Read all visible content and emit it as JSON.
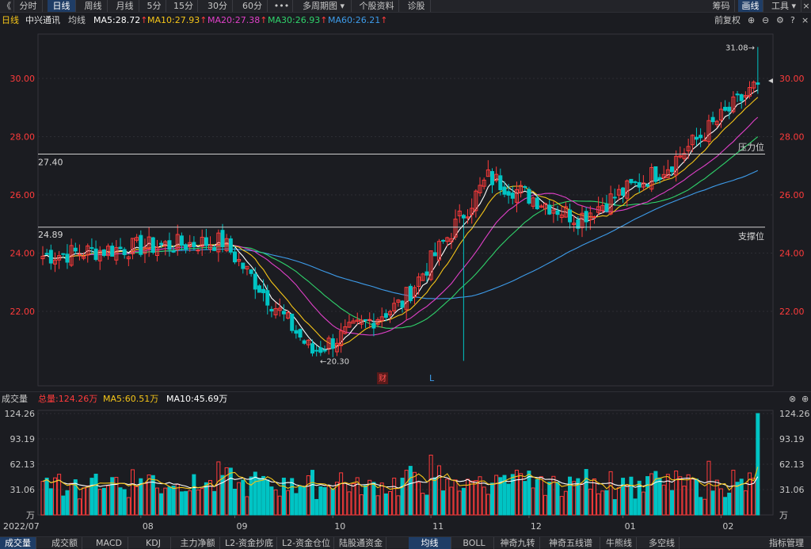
{
  "toolbar": {
    "back_glyph": "《",
    "tabs": [
      "分时",
      "日线",
      "周线",
      "月线",
      "5分",
      "15分",
      "30分",
      "60分",
      "•••",
      "多周期图 ▾",
      "个股资料",
      "诊股"
    ],
    "active_tab": "日线",
    "right": [
      "筹码",
      "画线",
      "工具 ▾"
    ],
    "active_right": "画线"
  },
  "info": {
    "period": "日线",
    "stock_name": "中兴通讯",
    "ma_label": "均线",
    "ma5": "MA5:28.72",
    "ma10": "MA10:27.93",
    "ma20": "MA20:27.38",
    "ma30": "MA30:26.93",
    "ma60": "MA60:26.21",
    "adjust": "前复权",
    "colors": {
      "ma5": "#ffffff",
      "ma10": "#f5c518",
      "ma20": "#e040c8",
      "ma30": "#2fd36b",
      "ma60": "#3d9be9",
      "up": "#ff3b3b",
      "down": "#00c4c4"
    }
  },
  "main": {
    "y_ticks": [
      "30.00",
      "28.00",
      "26.00",
      "24.00",
      "22.00"
    ],
    "resistance_value": "27.40",
    "resistance_label": "压力位",
    "support_value": "24.89",
    "support_label": "支撑位",
    "high_label": "31.08→",
    "low_label": "←20.30",
    "marker_cai": "财",
    "marker_l": "L"
  },
  "volume": {
    "title": "成交量",
    "total": "总量:124.26万",
    "ma5": "MA5:60.51万",
    "ma10": "MA10:45.69万",
    "y_ticks": [
      "124.26",
      "93.19",
      "62.13",
      "31.06",
      "万"
    ],
    "x_ticks": [
      "2022/07",
      "08",
      "09",
      "10",
      "11",
      "12",
      "01",
      "02"
    ]
  },
  "bottom_tabs": [
    "成交量",
    "成交额",
    "MACD",
    "KDJ",
    "主力净额",
    "L2-资金抄底",
    "L2-资金仓位",
    "陆股通资金",
    "均线",
    "BOLL",
    "神奇九转",
    "神奇五线谱",
    "牛熊线",
    "多空线"
  ],
  "active_bottom": "均线",
  "bottom_right": "指标管理",
  "chart_data": {
    "type": "candlestick",
    "ylim": [
      20.3,
      31.08
    ],
    "points": [
      {
        "label": "2022/07",
        "close": 23.9
      },
      {
        "label": "08",
        "close": 24.2
      },
      {
        "label": "09",
        "close": 24.4
      },
      {
        "label": "10",
        "close": 20.6
      },
      {
        "label": "11",
        "close": 22.3
      },
      {
        "label": "12",
        "close": 26.6
      },
      {
        "label": "01",
        "close": 25.2
      },
      {
        "label": "02",
        "close": 27.0
      },
      {
        "label": "",
        "close": 29.8
      }
    ],
    "high": 31.08,
    "low": 20.3,
    "resistance": 27.4,
    "support": 24.89
  }
}
